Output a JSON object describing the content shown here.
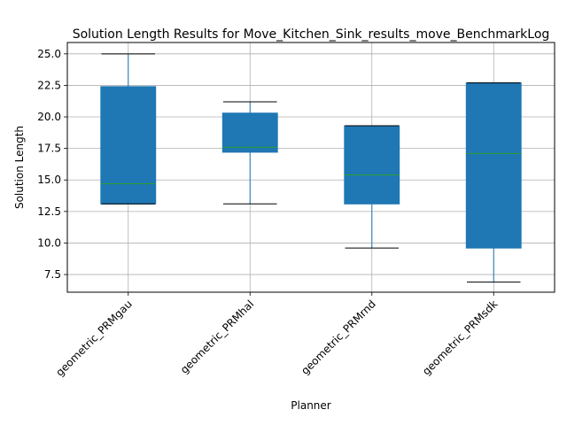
{
  "chart_data": {
    "type": "boxplot",
    "title": "Solution Length Results for Move_Kitchen_Sink_results_move_BenchmarkLog",
    "xlabel": "Planner",
    "ylabel": "Solution Length",
    "ylim": [
      6.1,
      25.9
    ],
    "yticks": [
      7.5,
      10.0,
      12.5,
      15.0,
      17.5,
      20.0,
      22.5,
      25.0
    ],
    "ytick_labels": [
      "7.5",
      "10.0",
      "12.5",
      "15.0",
      "17.5",
      "20.0",
      "22.5",
      "25.0"
    ],
    "grid": true,
    "categories": [
      "geometric_PRMgau",
      "geometric_PRMhal",
      "geometric_PRMrnd",
      "geometric_PRMsdk"
    ],
    "boxes": [
      {
        "whisker_low": 13.1,
        "q1": 13.1,
        "median": 14.7,
        "q3": 22.4,
        "whisker_high": 25.0
      },
      {
        "whisker_low": 13.1,
        "q1": 17.2,
        "median": 17.6,
        "q3": 20.3,
        "whisker_high": 21.2
      },
      {
        "whisker_low": 9.6,
        "q1": 13.1,
        "median": 15.4,
        "q3": 19.3,
        "whisker_high": 19.3
      },
      {
        "whisker_low": 6.9,
        "q1": 9.6,
        "median": 17.1,
        "q3": 22.7,
        "whisker_high": 22.7
      }
    ],
    "colors": {
      "box": "#1f77b4",
      "median": "#2ca02c",
      "whisker": "#1f77b4",
      "cap": "#000000",
      "grid": "#b0b0b0"
    }
  }
}
